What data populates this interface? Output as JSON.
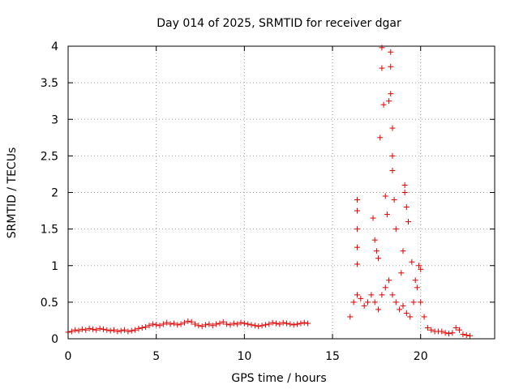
{
  "chart_data": {
    "type": "scatter",
    "title": "Day 014 of 2025, SRMTID for receiver dgar",
    "xlabel": "GPS time / hours",
    "ylabel": "SRMTID / TECUs",
    "xlim": [
      0,
      24.2
    ],
    "ylim": [
      0,
      4
    ],
    "xticks": [
      0,
      5,
      10,
      15,
      20
    ],
    "xtick_labels": [
      "0",
      "5",
      "10",
      "15",
      "20"
    ],
    "yticks": [
      0,
      0.5,
      1,
      1.5,
      2,
      2.5,
      3,
      3.5,
      4
    ],
    "ytick_labels": [
      "0",
      "0.5",
      "1",
      "1.5",
      "2",
      "2.5",
      "3",
      "3.5",
      "4"
    ],
    "grid": true,
    "marker": "+",
    "marker_color": "#e00000",
    "series": [
      {
        "name": "dgar",
        "points": [
          [
            0.0,
            0.09
          ],
          [
            0.2,
            0.1
          ],
          [
            0.4,
            0.12
          ],
          [
            0.6,
            0.11
          ],
          [
            0.8,
            0.13
          ],
          [
            1.0,
            0.12
          ],
          [
            1.2,
            0.14
          ],
          [
            1.4,
            0.13
          ],
          [
            1.6,
            0.12
          ],
          [
            1.8,
            0.14
          ],
          [
            2.0,
            0.13
          ],
          [
            2.2,
            0.12
          ],
          [
            2.4,
            0.11
          ],
          [
            2.6,
            0.12
          ],
          [
            2.8,
            0.1
          ],
          [
            3.0,
            0.11
          ],
          [
            3.2,
            0.12
          ],
          [
            3.4,
            0.1
          ],
          [
            3.6,
            0.11
          ],
          [
            3.8,
            0.12
          ],
          [
            4.0,
            0.14
          ],
          [
            4.2,
            0.15
          ],
          [
            4.4,
            0.16
          ],
          [
            4.6,
            0.18
          ],
          [
            4.8,
            0.2
          ],
          [
            5.0,
            0.19
          ],
          [
            5.2,
            0.18
          ],
          [
            5.4,
            0.2
          ],
          [
            5.6,
            0.22
          ],
          [
            5.8,
            0.2
          ],
          [
            6.0,
            0.21
          ],
          [
            6.2,
            0.19
          ],
          [
            6.4,
            0.2
          ],
          [
            6.6,
            0.22
          ],
          [
            6.8,
            0.24
          ],
          [
            7.0,
            0.23
          ],
          [
            7.2,
            0.2
          ],
          [
            7.4,
            0.18
          ],
          [
            7.6,
            0.17
          ],
          [
            7.8,
            0.19
          ],
          [
            8.0,
            0.2
          ],
          [
            8.2,
            0.18
          ],
          [
            8.4,
            0.2
          ],
          [
            8.6,
            0.21
          ],
          [
            8.8,
            0.23
          ],
          [
            9.0,
            0.2
          ],
          [
            9.2,
            0.19
          ],
          [
            9.4,
            0.21
          ],
          [
            9.6,
            0.2
          ],
          [
            9.8,
            0.22
          ],
          [
            10.0,
            0.21
          ],
          [
            10.2,
            0.2
          ],
          [
            10.4,
            0.19
          ],
          [
            10.6,
            0.18
          ],
          [
            10.8,
            0.17
          ],
          [
            11.0,
            0.18
          ],
          [
            11.2,
            0.19
          ],
          [
            11.4,
            0.2
          ],
          [
            11.6,
            0.22
          ],
          [
            11.8,
            0.21
          ],
          [
            12.0,
            0.2
          ],
          [
            12.2,
            0.22
          ],
          [
            12.4,
            0.21
          ],
          [
            12.6,
            0.2
          ],
          [
            12.8,
            0.19
          ],
          [
            13.0,
            0.2
          ],
          [
            13.2,
            0.21
          ],
          [
            13.4,
            0.22
          ],
          [
            13.6,
            0.21
          ],
          [
            16.0,
            0.3
          ],
          [
            16.2,
            0.5
          ],
          [
            16.4,
            0.6
          ],
          [
            16.6,
            0.55
          ],
          [
            16.8,
            0.45
          ],
          [
            17.0,
            0.5
          ],
          [
            17.2,
            0.6
          ],
          [
            17.4,
            0.5
          ],
          [
            17.6,
            0.4
          ],
          [
            17.8,
            0.6
          ],
          [
            18.0,
            0.7
          ],
          [
            18.2,
            0.8
          ],
          [
            18.4,
            0.6
          ],
          [
            18.6,
            0.5
          ],
          [
            18.8,
            0.4
          ],
          [
            19.0,
            0.45
          ],
          [
            19.2,
            0.35
          ],
          [
            19.4,
            0.3
          ],
          [
            19.6,
            0.5
          ],
          [
            19.8,
            0.7
          ],
          [
            20.0,
            0.5
          ],
          [
            20.2,
            0.3
          ],
          [
            20.4,
            0.15
          ],
          [
            20.6,
            0.12
          ],
          [
            20.8,
            0.1
          ],
          [
            21.0,
            0.1
          ],
          [
            21.2,
            0.1
          ],
          [
            21.4,
            0.08
          ],
          [
            21.6,
            0.07
          ],
          [
            21.8,
            0.08
          ],
          [
            22.0,
            0.15
          ],
          [
            22.2,
            0.12
          ],
          [
            22.4,
            0.06
          ],
          [
            22.6,
            0.05
          ],
          [
            22.8,
            0.04
          ],
          [
            16.4,
            1.9
          ],
          [
            16.4,
            1.75
          ],
          [
            16.4,
            1.5
          ],
          [
            16.4,
            1.25
          ],
          [
            16.4,
            1.02
          ],
          [
            17.3,
            1.65
          ],
          [
            17.4,
            1.35
          ],
          [
            17.6,
            1.1
          ],
          [
            17.7,
            2.75
          ],
          [
            17.8,
            3.98
          ],
          [
            17.8,
            3.7
          ],
          [
            17.9,
            3.2
          ],
          [
            18.0,
            1.95
          ],
          [
            18.1,
            1.7
          ],
          [
            18.2,
            3.25
          ],
          [
            18.3,
            3.92
          ],
          [
            18.3,
            3.72
          ],
          [
            18.3,
            3.35
          ],
          [
            18.4,
            2.88
          ],
          [
            18.4,
            2.5
          ],
          [
            18.4,
            2.3
          ],
          [
            18.5,
            1.9
          ],
          [
            18.6,
            1.5
          ],
          [
            19.1,
            2.1
          ],
          [
            19.1,
            2.0
          ],
          [
            19.2,
            1.8
          ],
          [
            19.3,
            1.6
          ],
          [
            19.0,
            1.2
          ],
          [
            19.5,
            1.05
          ],
          [
            19.9,
            1.0
          ],
          [
            20.0,
            0.95
          ],
          [
            19.7,
            0.8
          ],
          [
            18.9,
            0.9
          ],
          [
            17.5,
            1.2
          ]
        ]
      }
    ]
  }
}
